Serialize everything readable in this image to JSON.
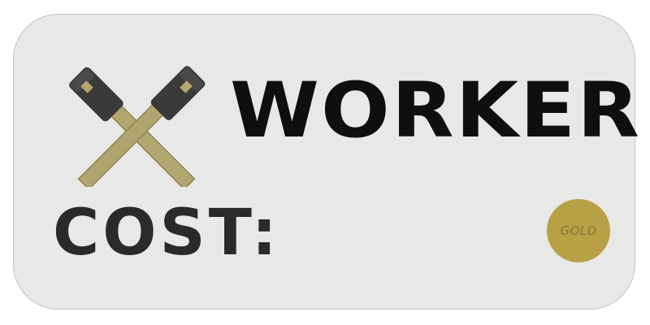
{
  "card": {
    "title": "WORKER",
    "cost_label": "COST:",
    "icon": "crossed-hammers-icon",
    "currency": {
      "label": "GOLD",
      "icon": "gold-coin-icon",
      "color": "#b8a046"
    }
  },
  "colors": {
    "card_background": "#e8e8e7",
    "hammer_head": "#3a3a3a",
    "hammer_handle": "#b2a670",
    "title_text": "#0f0f0f"
  }
}
